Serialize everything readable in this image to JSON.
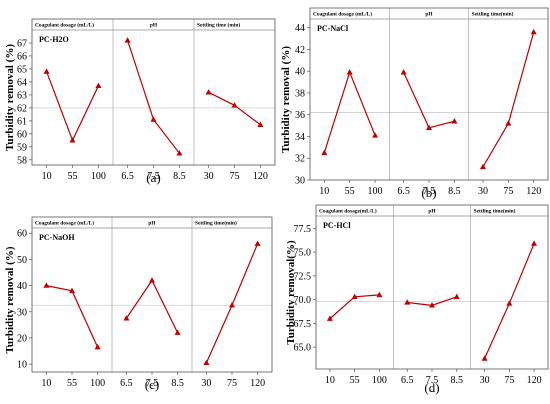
{
  "colors": {
    "series": "#c00000",
    "frame": "#555555",
    "divider": "#999999",
    "reference": "#cccccc"
  },
  "chart_data": [
    {
      "type": "line",
      "caption": "(a)",
      "tag": "PC-H2O",
      "ylabel": "Turbidity removal (%)",
      "ylim": [
        57.6,
        68
      ],
      "yticks": [
        58,
        59,
        60,
        61,
        62,
        63,
        64,
        65,
        66,
        67
      ],
      "reference": 62.0,
      "factors": [
        {
          "name": "Coagulant dosage (mL/L)",
          "levels": [
            "10",
            "55",
            "100"
          ],
          "values": [
            64.8,
            59.5,
            63.7
          ]
        },
        {
          "name": "pH",
          "levels": [
            "6.5",
            "7.5",
            "8.5"
          ],
          "values": [
            67.2,
            61.1,
            58.5
          ]
        },
        {
          "name": "Settling time (min)",
          "levels": [
            "30",
            "75",
            "120"
          ],
          "values": [
            63.2,
            62.2,
            60.7
          ]
        }
      ]
    },
    {
      "type": "line",
      "caption": "(b)",
      "tag": "PC-NaCl",
      "ylabel": "Turbidity removal (%)",
      "ylim": [
        30,
        44.8
      ],
      "yticks": [
        30,
        32,
        34,
        36,
        38,
        40,
        42,
        44
      ],
      "reference": 36.2,
      "factors": [
        {
          "name": "Coagulant dosage (mL/L)",
          "levels": [
            "10",
            "55",
            "100"
          ],
          "values": [
            32.5,
            39.9,
            34.1
          ]
        },
        {
          "name": "pH",
          "levels": [
            "6.5",
            "7.5",
            "8.5"
          ],
          "values": [
            39.9,
            34.8,
            35.4
          ]
        },
        {
          "name": "Settling time(min)",
          "levels": [
            "30",
            "75",
            "120"
          ],
          "values": [
            31.2,
            35.2,
            43.6
          ]
        }
      ]
    },
    {
      "type": "line",
      "caption": "(c)",
      "tag": "PC-NaOH",
      "ylabel": "Turbidity removal (%)",
      "ylim": [
        7,
        62
      ],
      "yticks": [
        10,
        20,
        30,
        40,
        50,
        60
      ],
      "reference": 32.5,
      "factors": [
        {
          "name": "Coagulant dosage (mL/L)",
          "levels": [
            "10",
            "55",
            "100"
          ],
          "values": [
            40.0,
            38.0,
            16.5
          ]
        },
        {
          "name": "pH",
          "levels": [
            "6.5",
            "7.5",
            "8.5"
          ],
          "values": [
            27.5,
            42.0,
            22.0
          ]
        },
        {
          "name": "Settling time(min)",
          "levels": [
            "30",
            "75",
            "120"
          ],
          "values": [
            10.5,
            32.5,
            56.0
          ]
        }
      ]
    },
    {
      "type": "line",
      "caption": "(d)",
      "tag": "PC-HCl",
      "ylabel": "Turbidity removal(%)",
      "ylim": [
        62.7,
        78.8
      ],
      "yticks": [
        65.0,
        67.5,
        70.0,
        72.5,
        75.0,
        77.5
      ],
      "ytick_labels": [
        "65.0",
        "67.5",
        "70.0",
        "72.5",
        "75.0",
        "77.5"
      ],
      "reference": 69.8,
      "factors": [
        {
          "name": "Coagulant dosage(mL/L)",
          "levels": [
            "10",
            "55",
            "100"
          ],
          "values": [
            68.0,
            70.3,
            70.5
          ]
        },
        {
          "name": "pH",
          "levels": [
            "6.5",
            "7.5",
            "8.5"
          ],
          "values": [
            69.7,
            69.4,
            70.3
          ]
        },
        {
          "name": "Settling time(min)",
          "levels": [
            "30",
            "75",
            "120"
          ],
          "values": [
            63.8,
            69.6,
            75.9
          ]
        }
      ]
    }
  ]
}
